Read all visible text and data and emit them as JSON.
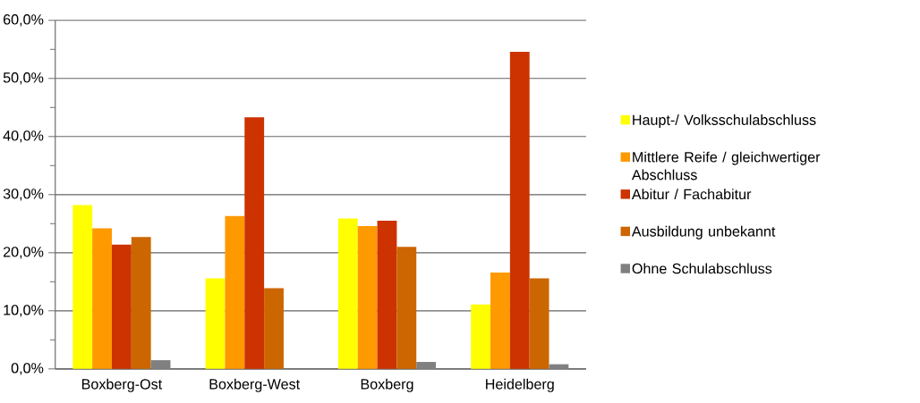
{
  "chart_data": {
    "type": "bar",
    "categories": [
      "Boxberg-Ost",
      "Boxberg-West",
      "Boxberg",
      "Heidelberg"
    ],
    "series": [
      {
        "name": "Haupt-/ Volksschulabschluss",
        "color": "#ffff00",
        "values": [
          28.2,
          15.6,
          25.9,
          11.1
        ]
      },
      {
        "name": "Mittlere Reife / gleichwertiger Abschluss",
        "color": "#ff9900",
        "values": [
          24.2,
          26.3,
          24.6,
          16.6
        ]
      },
      {
        "name": "Abitur / Fachabitur",
        "color": "#cc3300",
        "values": [
          21.4,
          43.3,
          25.5,
          54.6
        ]
      },
      {
        "name": "Ausbildung unbekannt",
        "color": "#cc6600",
        "values": [
          22.7,
          13.9,
          21.0,
          15.6
        ]
      },
      {
        "name": "Ohne Schulabschluss",
        "color": "#808080",
        "values": [
          1.5,
          null,
          1.2,
          0.8
        ]
      }
    ],
    "ylim": [
      0,
      60
    ],
    "yticks": [
      {
        "value": 0,
        "label": "0,0%"
      },
      {
        "value": 5,
        "label": null
      },
      {
        "value": 10,
        "label": "10,0%"
      },
      {
        "value": 15,
        "label": null
      },
      {
        "value": 20,
        "label": "20,0%"
      },
      {
        "value": 25,
        "label": null
      },
      {
        "value": 30,
        "label": "30,0%"
      },
      {
        "value": 35,
        "label": null
      },
      {
        "value": 40,
        "label": "40,0%"
      },
      {
        "value": 45,
        "label": null
      },
      {
        "value": 50,
        "label": "50,0%"
      },
      {
        "value": 55,
        "label": null
      },
      {
        "value": 60,
        "label": "60,0%"
      }
    ],
    "grid": "y",
    "legend": "right"
  }
}
